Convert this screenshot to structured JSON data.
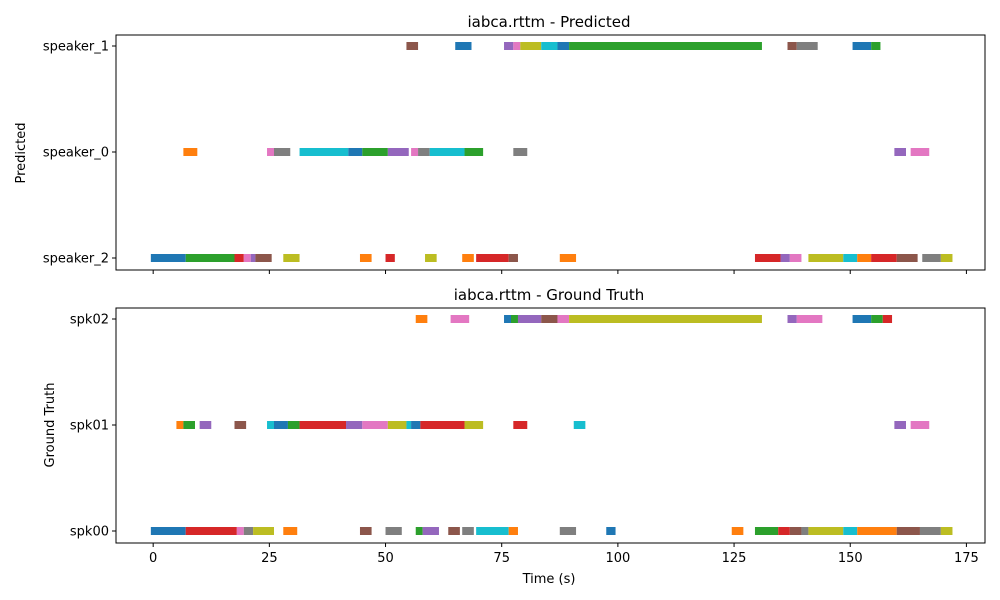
{
  "palette": [
    "#1f77b4",
    "#ff7f0e",
    "#2ca02c",
    "#d62728",
    "#9467bd",
    "#8c564b",
    "#e377c2",
    "#7f7f7f",
    "#bcbd22",
    "#17becf"
  ],
  "chart_data": [
    {
      "type": "timeline",
      "title": "iabca.rttm - Predicted",
      "ylabel": "Predicted",
      "xlabel": "",
      "xlim": [
        -8,
        179
      ],
      "xticks": [
        0,
        25,
        50,
        75,
        100,
        125,
        150,
        175
      ],
      "xtick_labels_visible": false,
      "tracks": [
        "speaker_1",
        "speaker_0",
        "speaker_2"
      ],
      "segments": [
        {
          "track": "speaker_1",
          "start": 54.5,
          "end": 57,
          "color": 5
        },
        {
          "track": "speaker_1",
          "start": 65,
          "end": 68.5,
          "color": 0
        },
        {
          "track": "speaker_1",
          "start": 75.5,
          "end": 77.5,
          "color": 4
        },
        {
          "track": "speaker_1",
          "start": 77.5,
          "end": 79,
          "color": 6
        },
        {
          "track": "speaker_1",
          "start": 79,
          "end": 83.5,
          "color": 8
        },
        {
          "track": "speaker_1",
          "start": 83.5,
          "end": 87,
          "color": 9
        },
        {
          "track": "speaker_1",
          "start": 87,
          "end": 89.5,
          "color": 0
        },
        {
          "track": "speaker_1",
          "start": 89.5,
          "end": 131,
          "color": 2
        },
        {
          "track": "speaker_1",
          "start": 136.5,
          "end": 138.5,
          "color": 5
        },
        {
          "track": "speaker_1",
          "start": 138.5,
          "end": 143,
          "color": 7
        },
        {
          "track": "speaker_1",
          "start": 150.5,
          "end": 154.5,
          "color": 0
        },
        {
          "track": "speaker_1",
          "start": 154.5,
          "end": 156.5,
          "color": 2
        },
        {
          "track": "speaker_0",
          "start": 6.5,
          "end": 9.5,
          "color": 1
        },
        {
          "track": "speaker_0",
          "start": 24.5,
          "end": 26,
          "color": 6
        },
        {
          "track": "speaker_0",
          "start": 26,
          "end": 29.5,
          "color": 7
        },
        {
          "track": "speaker_0",
          "start": 31.5,
          "end": 42,
          "color": 9
        },
        {
          "track": "speaker_0",
          "start": 42,
          "end": 45,
          "color": 0
        },
        {
          "track": "speaker_0",
          "start": 45,
          "end": 50.5,
          "color": 2
        },
        {
          "track": "speaker_0",
          "start": 50.5,
          "end": 55,
          "color": 4
        },
        {
          "track": "speaker_0",
          "start": 55.5,
          "end": 57,
          "color": 6
        },
        {
          "track": "speaker_0",
          "start": 57,
          "end": 59.5,
          "color": 7
        },
        {
          "track": "speaker_0",
          "start": 59.5,
          "end": 67,
          "color": 9
        },
        {
          "track": "speaker_0",
          "start": 67,
          "end": 71,
          "color": 2
        },
        {
          "track": "speaker_0",
          "start": 77.5,
          "end": 80.5,
          "color": 7
        },
        {
          "track": "speaker_0",
          "start": 159.5,
          "end": 162,
          "color": 4
        },
        {
          "track": "speaker_0",
          "start": 163,
          "end": 167,
          "color": 6
        },
        {
          "track": "speaker_2",
          "start": -0.5,
          "end": 7,
          "color": 0
        },
        {
          "track": "speaker_2",
          "start": 7,
          "end": 17.5,
          "color": 2
        },
        {
          "track": "speaker_2",
          "start": 17.5,
          "end": 19.5,
          "color": 3
        },
        {
          "track": "speaker_2",
          "start": 19.5,
          "end": 21,
          "color": 6
        },
        {
          "track": "speaker_2",
          "start": 21,
          "end": 22,
          "color": 4
        },
        {
          "track": "speaker_2",
          "start": 22,
          "end": 25.5,
          "color": 5
        },
        {
          "track": "speaker_2",
          "start": 28,
          "end": 31.5,
          "color": 8
        },
        {
          "track": "speaker_2",
          "start": 44.5,
          "end": 47,
          "color": 1
        },
        {
          "track": "speaker_2",
          "start": 50,
          "end": 52,
          "color": 3
        },
        {
          "track": "speaker_2",
          "start": 58.5,
          "end": 61,
          "color": 8
        },
        {
          "track": "speaker_2",
          "start": 66.5,
          "end": 69,
          "color": 1
        },
        {
          "track": "speaker_2",
          "start": 69.5,
          "end": 76.5,
          "color": 3
        },
        {
          "track": "speaker_2",
          "start": 76.5,
          "end": 78.5,
          "color": 5
        },
        {
          "track": "speaker_2",
          "start": 87.5,
          "end": 91,
          "color": 1
        },
        {
          "track": "speaker_2",
          "start": 129.5,
          "end": 135,
          "color": 3
        },
        {
          "track": "speaker_2",
          "start": 135,
          "end": 137,
          "color": 4
        },
        {
          "track": "speaker_2",
          "start": 137,
          "end": 139.5,
          "color": 6
        },
        {
          "track": "speaker_2",
          "start": 141,
          "end": 148.5,
          "color": 8
        },
        {
          "track": "speaker_2",
          "start": 148.5,
          "end": 151.5,
          "color": 9
        },
        {
          "track": "speaker_2",
          "start": 151.5,
          "end": 154.5,
          "color": 1
        },
        {
          "track": "speaker_2",
          "start": 154.5,
          "end": 160,
          "color": 3
        },
        {
          "track": "speaker_2",
          "start": 160,
          "end": 164.5,
          "color": 5
        },
        {
          "track": "speaker_2",
          "start": 165.5,
          "end": 169.5,
          "color": 7
        },
        {
          "track": "speaker_2",
          "start": 169.5,
          "end": 172,
          "color": 8
        }
      ]
    },
    {
      "type": "timeline",
      "title": "iabca.rttm - Ground Truth",
      "ylabel": "Ground Truth",
      "xlabel": "Time (s)",
      "xlim": [
        -8,
        179
      ],
      "xticks": [
        0,
        25,
        50,
        75,
        100,
        125,
        150,
        175
      ],
      "xtick_labels_visible": true,
      "tracks": [
        "spk02",
        "spk01",
        "spk00"
      ],
      "segments": [
        {
          "track": "spk02",
          "start": 56.5,
          "end": 59,
          "color": 1
        },
        {
          "track": "spk02",
          "start": 64,
          "end": 68,
          "color": 6
        },
        {
          "track": "spk02",
          "start": 75.5,
          "end": 77,
          "color": 0
        },
        {
          "track": "spk02",
          "start": 77,
          "end": 78.5,
          "color": 2
        },
        {
          "track": "spk02",
          "start": 78.5,
          "end": 83.5,
          "color": 4
        },
        {
          "track": "spk02",
          "start": 83.5,
          "end": 87,
          "color": 5
        },
        {
          "track": "spk02",
          "start": 87,
          "end": 89.5,
          "color": 6
        },
        {
          "track": "spk02",
          "start": 89.5,
          "end": 131,
          "color": 8
        },
        {
          "track": "spk02",
          "start": 136.5,
          "end": 138.5,
          "color": 4
        },
        {
          "track": "spk02",
          "start": 138.5,
          "end": 144,
          "color": 6
        },
        {
          "track": "spk02",
          "start": 150.5,
          "end": 154.5,
          "color": 0
        },
        {
          "track": "spk02",
          "start": 154.5,
          "end": 157,
          "color": 2
        },
        {
          "track": "spk02",
          "start": 157,
          "end": 159,
          "color": 3
        },
        {
          "track": "spk01",
          "start": 5,
          "end": 6.5,
          "color": 1
        },
        {
          "track": "spk01",
          "start": 6.5,
          "end": 9,
          "color": 2
        },
        {
          "track": "spk01",
          "start": 10,
          "end": 12.5,
          "color": 4
        },
        {
          "track": "spk01",
          "start": 17.5,
          "end": 20,
          "color": 5
        },
        {
          "track": "spk01",
          "start": 24.5,
          "end": 26,
          "color": 9
        },
        {
          "track": "spk01",
          "start": 26,
          "end": 29,
          "color": 0
        },
        {
          "track": "spk01",
          "start": 29,
          "end": 31.5,
          "color": 2
        },
        {
          "track": "spk01",
          "start": 31.5,
          "end": 41.5,
          "color": 3
        },
        {
          "track": "spk01",
          "start": 41.5,
          "end": 45,
          "color": 4
        },
        {
          "track": "spk01",
          "start": 45,
          "end": 50.5,
          "color": 6
        },
        {
          "track": "spk01",
          "start": 50.5,
          "end": 54.5,
          "color": 8
        },
        {
          "track": "spk01",
          "start": 54.5,
          "end": 55.5,
          "color": 9
        },
        {
          "track": "spk01",
          "start": 55.5,
          "end": 57.5,
          "color": 0
        },
        {
          "track": "spk01",
          "start": 57.5,
          "end": 67,
          "color": 3
        },
        {
          "track": "spk01",
          "start": 67,
          "end": 71,
          "color": 8
        },
        {
          "track": "spk01",
          "start": 77.5,
          "end": 80.5,
          "color": 3
        },
        {
          "track": "spk01",
          "start": 90.5,
          "end": 93,
          "color": 9
        },
        {
          "track": "spk01",
          "start": 159.5,
          "end": 162,
          "color": 4
        },
        {
          "track": "spk01",
          "start": 163,
          "end": 167,
          "color": 6
        },
        {
          "track": "spk00",
          "start": -0.5,
          "end": 7,
          "color": 0
        },
        {
          "track": "spk00",
          "start": 7,
          "end": 18,
          "color": 3
        },
        {
          "track": "spk00",
          "start": 18,
          "end": 19.5,
          "color": 6
        },
        {
          "track": "spk00",
          "start": 19.5,
          "end": 21.5,
          "color": 7
        },
        {
          "track": "spk00",
          "start": 21.5,
          "end": 26,
          "color": 8
        },
        {
          "track": "spk00",
          "start": 28,
          "end": 31,
          "color": 1
        },
        {
          "track": "spk00",
          "start": 44.5,
          "end": 47,
          "color": 5
        },
        {
          "track": "spk00",
          "start": 50,
          "end": 53.5,
          "color": 7
        },
        {
          "track": "spk00",
          "start": 56.5,
          "end": 58,
          "color": 2
        },
        {
          "track": "spk00",
          "start": 58,
          "end": 61.5,
          "color": 4
        },
        {
          "track": "spk00",
          "start": 63.5,
          "end": 66,
          "color": 5
        },
        {
          "track": "spk00",
          "start": 66.5,
          "end": 69,
          "color": 7
        },
        {
          "track": "spk00",
          "start": 69.5,
          "end": 76.5,
          "color": 9
        },
        {
          "track": "spk00",
          "start": 76.5,
          "end": 78.5,
          "color": 1
        },
        {
          "track": "spk00",
          "start": 87.5,
          "end": 91,
          "color": 7
        },
        {
          "track": "spk00",
          "start": 97.5,
          "end": 99.5,
          "color": 0
        },
        {
          "track": "spk00",
          "start": 124.5,
          "end": 127,
          "color": 1
        },
        {
          "track": "spk00",
          "start": 129.5,
          "end": 134.5,
          "color": 2
        },
        {
          "track": "spk00",
          "start": 134.5,
          "end": 137,
          "color": 3
        },
        {
          "track": "spk00",
          "start": 137,
          "end": 139.5,
          "color": 5
        },
        {
          "track": "spk00",
          "start": 139.5,
          "end": 141,
          "color": 7
        },
        {
          "track": "spk00",
          "start": 141,
          "end": 148.5,
          "color": 8
        },
        {
          "track": "spk00",
          "start": 148.5,
          "end": 151.5,
          "color": 9
        },
        {
          "track": "spk00",
          "start": 151.5,
          "end": 160,
          "color": 1
        },
        {
          "track": "spk00",
          "start": 160,
          "end": 165,
          "color": 5
        },
        {
          "track": "spk00",
          "start": 165,
          "end": 169.5,
          "color": 7
        },
        {
          "track": "spk00",
          "start": 169.5,
          "end": 172,
          "color": 8
        }
      ]
    }
  ]
}
